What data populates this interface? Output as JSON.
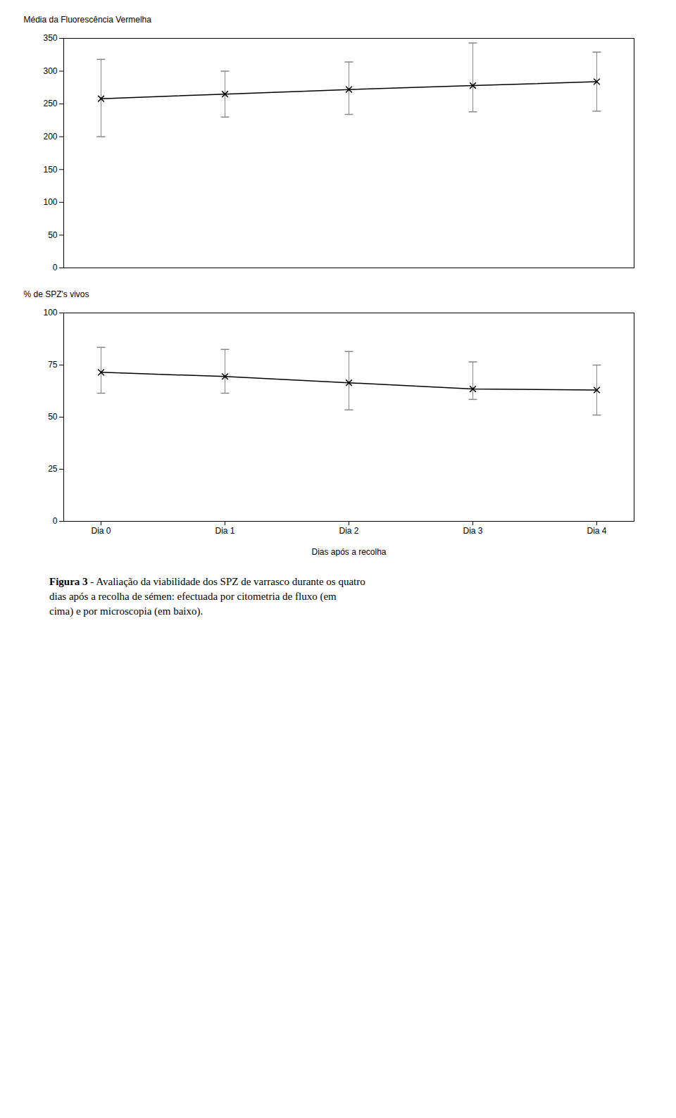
{
  "chart_data": [
    {
      "type": "line",
      "categories": [
        "Dia 0",
        "Dia 1",
        "Dia 2",
        "Dia 3",
        "Dia 4"
      ],
      "values": [
        258,
        265,
        272,
        278,
        284
      ],
      "yerr_upper": [
        60,
        35,
        42,
        65,
        45
      ],
      "yerr_lower": [
        58,
        35,
        38,
        40,
        45
      ],
      "ylabel": "Média da Fluorescência Vermelha",
      "ylim": [
        0,
        350
      ],
      "yticks": [
        0,
        50,
        100,
        150,
        200,
        250,
        300,
        350
      ],
      "color": "black",
      "marker": "x",
      "line_style": "solid",
      "grid": false,
      "tick_labels": "y"
    },
    {
      "type": "line",
      "categories": [
        "Dia 0",
        "Dia 1",
        "Dia 2",
        "Dia 3",
        "Dia 4"
      ],
      "values": [
        71.5,
        69.5,
        66.5,
        63.5,
        63.0
      ],
      "yerr_upper": [
        12,
        13,
        15,
        13,
        12
      ],
      "yerr_lower": [
        10,
        8,
        13,
        5,
        12
      ],
      "xlabel": "Dias após a recolha",
      "ylabel": "% de SPZ's vivos",
      "ylim": [
        0,
        100
      ],
      "yticks": [
        0,
        25,
        50,
        75,
        100
      ],
      "color": "black",
      "marker": "x",
      "line_style": "solid",
      "grid": false,
      "annotations": [
        "Figura 3",
        "- Avaliação da viabilidade dos SPZ de varrasco durante os quatro\ndias após a recolha de sémen: efectuada por citometria de fluxo (em\ncima) e por microscopia (em baixo)."
      ]
    }
  ]
}
